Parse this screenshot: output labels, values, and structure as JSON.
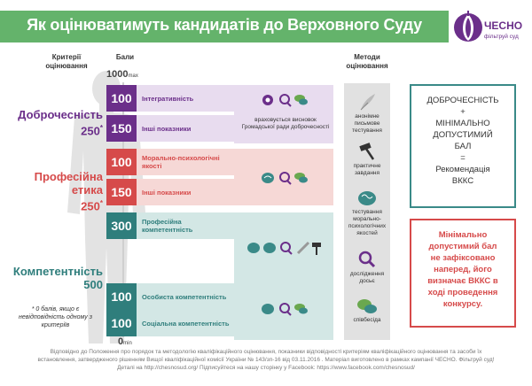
{
  "title": "Як оцінюватимуть кандидатів до Верховного Суду",
  "logo": {
    "brand": "ЧЕСНО",
    "tagline": "фільтруй суд",
    "icon": "garlic-logo-icon"
  },
  "headers": {
    "criteria": "Критерії оцінювання",
    "points": "Бали",
    "methods": "Методи оцінювання"
  },
  "scale": {
    "max": "1000",
    "max_suffix": "max",
    "min": "0",
    "min_suffix": "min"
  },
  "criteria": [
    {
      "name": "Доброчесність",
      "points": "250",
      "mark": "*",
      "color": "#6b2f8a"
    },
    {
      "name": "Професійна етика",
      "name_line1": "Професійна",
      "name_line2": "етика",
      "points": "250",
      "mark": "*",
      "color": "#d64a4a"
    },
    {
      "name": "Компетентність",
      "points": "500",
      "mark": "",
      "color": "#2f7e7c"
    }
  ],
  "zero_note": "* 0 балів, якщо є невідповідність одному з критеріїв",
  "rows": [
    {
      "value": "100",
      "label": "Інтегративність",
      "num_color": "#6b2f8a",
      "bg": "#e8dcef"
    },
    {
      "value": "150",
      "label": "Інші показники",
      "num_color": "#6b2f8a",
      "bg": "#e8dcef"
    },
    {
      "value": "100",
      "label": "Морально-психологічні якості",
      "num_color": "#d64a4a",
      "bg": "#f6d8d6"
    },
    {
      "value": "150",
      "label": "Інші показники",
      "num_color": "#d64a4a",
      "bg": "#f6d8d6"
    },
    {
      "value": "300",
      "label": "Професійна компетентність",
      "num_color": "#2f7e7c",
      "bg": "#d3e7e5"
    },
    {
      "value": "100",
      "label": "Особиста компетентність",
      "num_color": "#2f7e7c",
      "bg": "#d3e7e5"
    },
    {
      "value": "100",
      "label": "Соціальна компетентність",
      "num_color": "#2f7e7c",
      "bg": "#d3e7e5"
    }
  ],
  "panels": {
    "integrity_note": "враховується висновок Громадської ради доброчесності"
  },
  "methods": [
    {
      "label": "анонімне письмове тестування",
      "icon": "quill-icon"
    },
    {
      "label": "практичне завдання",
      "icon": "gavel-icon"
    },
    {
      "label": "тестування морально-психологічних якостей",
      "icon": "brain-icon"
    },
    {
      "label": "дослідження досьє",
      "icon": "magnifier-icon"
    },
    {
      "label": "співбесіда",
      "icon": "chat-bubbles-icon"
    }
  ],
  "formula": {
    "lines": [
      "ДОБРОЧЕСНІСТЬ",
      "+",
      "МІНІМАЛЬНО",
      "ДОПУСТИМИЙ",
      "БАЛ",
      "=",
      "Рекомендація",
      "ВККС"
    ]
  },
  "min_note": {
    "lines": [
      "Мінімально",
      "допустимий бал",
      "не зафіксовано",
      "наперед, його",
      "визначає ВККС в",
      "ході проведення",
      "конкурсу."
    ]
  },
  "footer": {
    "line1": "Відповідно до Положення про порядок та методологію кваліфікаційного оцінювання, показники відповідності критеріям кваліфікаційного оцінювання та засоби їх",
    "line2": "встановлення, затвердженого рішенням Вищої кваліфікаційної комісії України № 143/зп-16 від 03.11.2016 . Матеріал виготовлено в рамках кампанії ЧЕСНО. Фільтруй суд!",
    "line3": "Деталі на http://chesnosud.org/ Підписуйтеся на нашу сторінку у Facebook: https://www.facebook.com/chesnosud/"
  },
  "colors": {
    "title_green": "#64b36b",
    "purple": "#6b2f8a",
    "red": "#d64a4a",
    "teal": "#2f7e7c"
  }
}
